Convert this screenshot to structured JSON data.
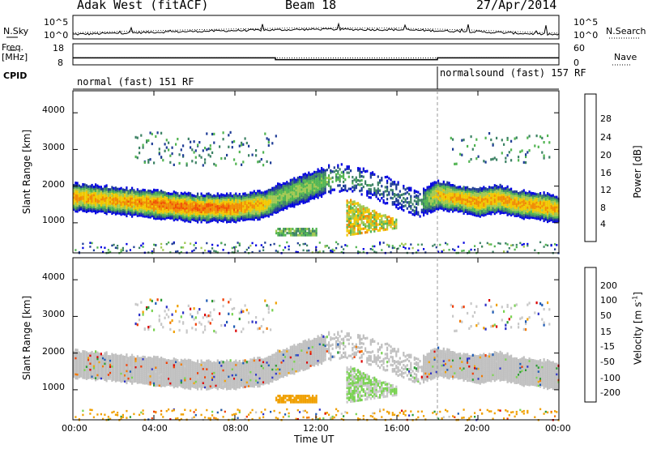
{
  "header": {
    "title": "Adak West (fitACF)",
    "beam": "Beam 18",
    "date": "27/Apr/2014"
  },
  "left_labels": {
    "nsky": "N.Sky",
    "freq": "Freq.",
    "freq_unit": "[MHz]",
    "cpid": "CPID"
  },
  "right_labels": {
    "nsearch": "N.Search",
    "nave": "Nave"
  },
  "noise_panel": {
    "left_ticks": [
      "10^5",
      "10^0"
    ],
    "right_ticks": [
      "10^5",
      "10^0"
    ]
  },
  "freq_panel": {
    "left_ticks": [
      "18",
      "8"
    ],
    "right_ticks": [
      "60",
      "0"
    ]
  },
  "cpid_labels": [
    "normal (fast) 151 RF",
    "normalsound (fast) 157 RF"
  ],
  "power_panel": {
    "ylabel": "Slant Range [km]",
    "yticks": [
      "4000",
      "3000",
      "2000",
      "1000"
    ],
    "colorbar_label": "Power [dB]",
    "colorbar_ticks": [
      "28",
      "24",
      "20",
      "16",
      "12",
      "8",
      "4"
    ]
  },
  "velocity_panel": {
    "ylabel": "Slant Range [km]",
    "yticks": [
      "4000",
      "3000",
      "2000",
      "1000"
    ],
    "colorbar_label": "Velocity [m s",
    "colorbar_label_sup": "-1",
    "colorbar_label_end": "]",
    "colorbar_ticks": [
      "200",
      "100",
      "50",
      "15",
      "-15",
      "-50",
      "-100",
      "-200"
    ]
  },
  "xaxis": {
    "ticks": [
      "00:00",
      "04:00",
      "08:00",
      "12:00",
      "16:00",
      "20:00",
      "00:00"
    ],
    "label": "Time UT"
  },
  "colors": {
    "power_scale": [
      "#0000e0",
      "#1e3c96",
      "#3c8264",
      "#50b450",
      "#a0c850",
      "#f0c800",
      "#f08c00",
      "#f05000",
      "#e01414"
    ],
    "velocity_scale": [
      "#2d32c8",
      "#1e5ab4",
      "#2a9a32",
      "#78d250",
      "#c8c8c8",
      "#f0a000",
      "#f07800",
      "#f03c00",
      "#dc0000"
    ],
    "ground_scatter": "#c0c0c0"
  },
  "chart_data": {
    "type": "heatmap",
    "xlabel": "Time UT",
    "xlim_hours": [
      0,
      24
    ],
    "ylabel": "Slant Range [km]",
    "ylim_km": [
      180,
      4600
    ],
    "power_colorbar_db": [
      0,
      32
    ],
    "velocity_colorbar_ms": [
      -250,
      250
    ],
    "main_scatter_band": {
      "time_ut_hours": [
        0,
        2,
        4,
        6,
        8,
        9.5,
        10,
        11,
        12,
        13,
        14,
        15,
        16,
        17,
        18,
        19,
        20,
        21,
        22,
        23,
        24
      ],
      "center_range_km": [
        1750,
        1650,
        1550,
        1450,
        1450,
        1550,
        1700,
        1900,
        2100,
        2300,
        2200,
        2050,
        1800,
        1550,
        1800,
        1700,
        1600,
        1700,
        1550,
        1500,
        1400
      ],
      "peak_power_db": [
        22,
        22,
        24,
        25,
        24,
        20,
        14,
        16,
        14,
        12,
        10,
        8,
        8,
        8,
        20,
        22,
        22,
        22,
        22,
        22,
        22
      ]
    },
    "secondary_features": [
      {
        "time_ut_hours": [
          10,
          12
        ],
        "range_km": [
          700,
          900
        ],
        "peak_power_db": 16
      },
      {
        "time_ut_hours": [
          13.5,
          16
        ],
        "range_km": [
          700,
          1700
        ],
        "peak_power_db": 24
      }
    ],
    "noise_search_trend": {
      "time_ut_hours": [
        0,
        4,
        8,
        12,
        16,
        20,
        24
      ],
      "log10_noise": [
        0.7,
        1.2,
        1.6,
        1.9,
        1.8,
        1.3,
        0.6
      ]
    },
    "frequency_mhz": {
      "time_ut_hours": [
        0,
        10,
        10,
        18,
        18,
        24
      ],
      "values": [
        11,
        11,
        10,
        10,
        11,
        11
      ]
    },
    "nave": {
      "time_ut_hours": [
        0,
        24
      ],
      "values": [
        18,
        18
      ]
    },
    "cpid_change_ut_hours": 18
  }
}
